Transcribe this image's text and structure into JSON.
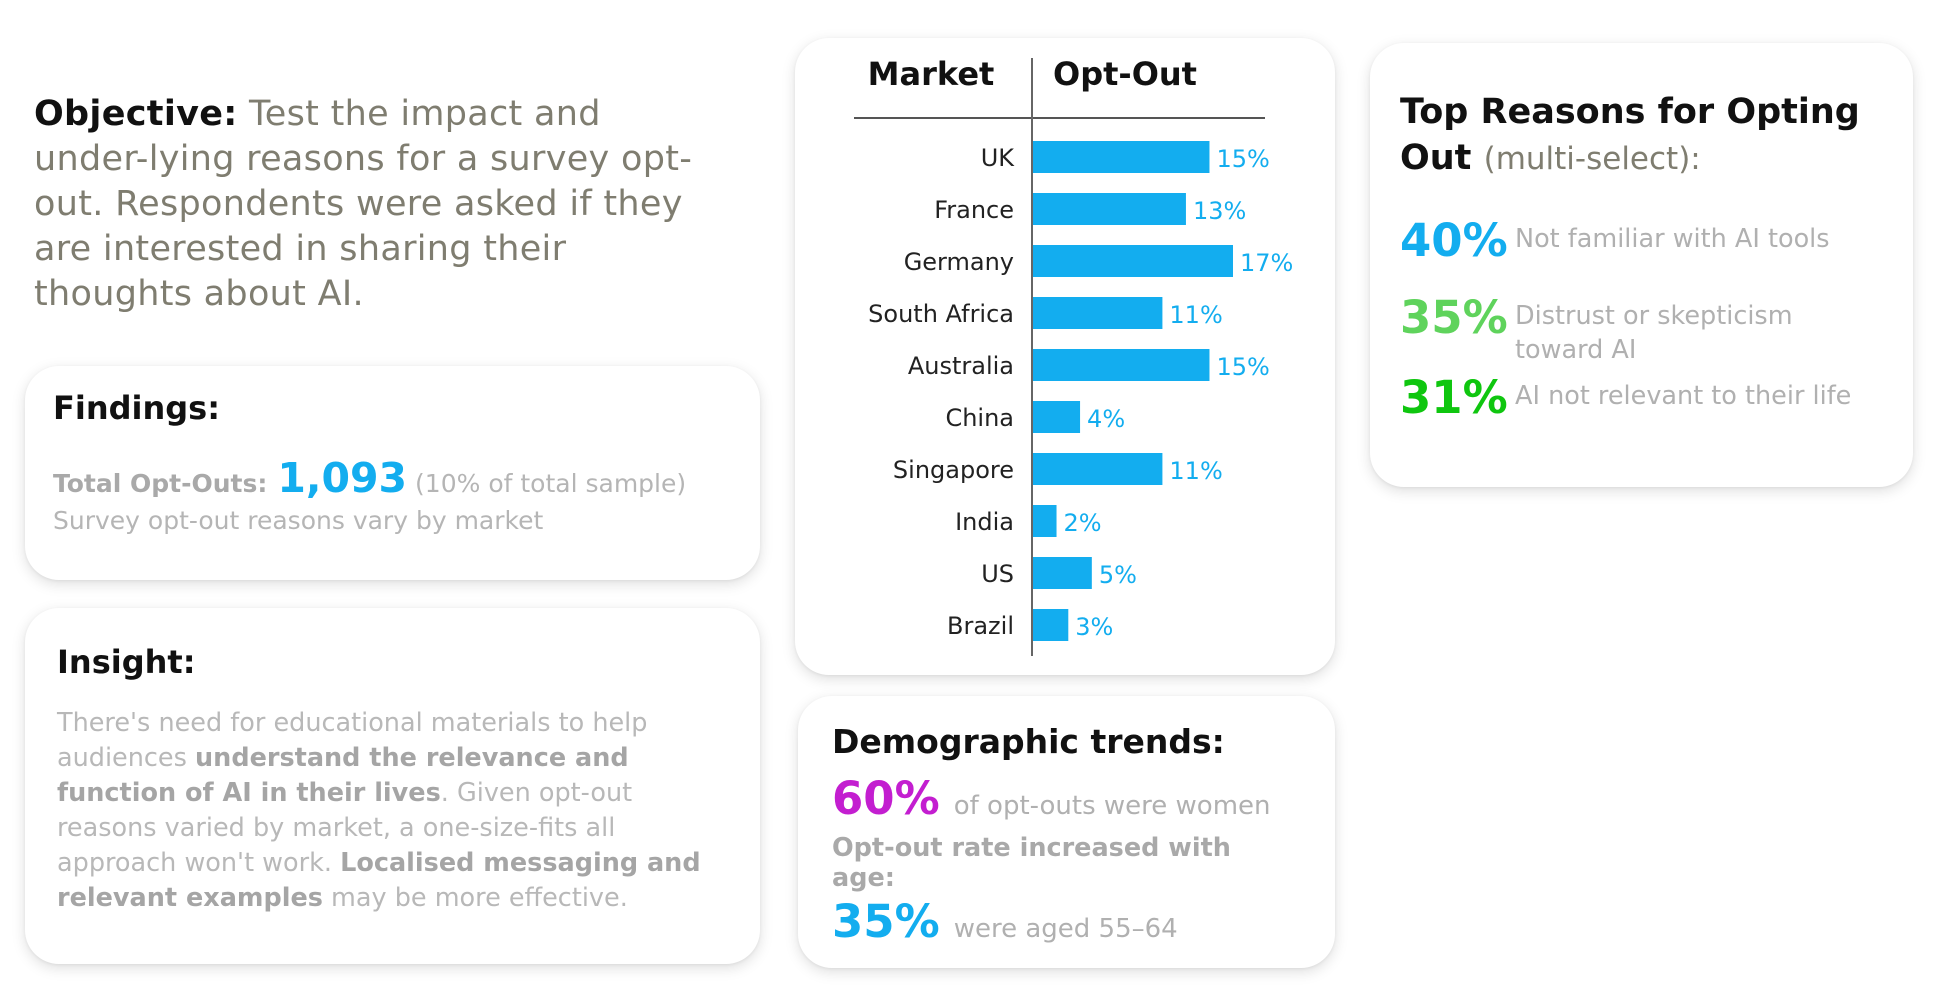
{
  "objective": {
    "label": "Objective:",
    "text": "Test the impact and under-lying reasons for a survey opt-out. Respondents were asked if they are interested in sharing their thoughts about AI."
  },
  "findings": {
    "title": "Findings:",
    "total_label": "Total Opt-Outs:",
    "total_value": "1,093",
    "total_note": "(10% of total sample)",
    "note": "Survey opt-out reasons vary by market"
  },
  "insight": {
    "title": "Insight:",
    "t1": "There's need for educational materials to help audiences ",
    "b1": "understand the relevance and function of AI in their lives",
    "t2": ". Given opt-out reasons varied by market, a one-size-fits all approach won't work. ",
    "b2": "Localised messaging and relevant examples",
    "t3": " may be more effective."
  },
  "chart_data": {
    "type": "bar",
    "orientation": "horizontal",
    "header_category": "Market",
    "header_value": "Opt-Out",
    "categories": [
      "UK",
      "France",
      "Germany",
      "South Africa",
      "Australia",
      "China",
      "Singapore",
      "India",
      "US",
      "Brazil"
    ],
    "values": [
      15,
      13,
      17,
      11,
      15,
      4,
      11,
      2,
      5,
      3
    ],
    "value_labels": [
      "15%",
      "13%",
      "17%",
      "11%",
      "15%",
      "4%",
      "11%",
      "2%",
      "5%",
      "3%"
    ],
    "unit": "%",
    "xlim": [
      0,
      17
    ],
    "bar_color": "#13adef",
    "grid": false,
    "legend": "none"
  },
  "demographics": {
    "title": "Demographic trends:",
    "women_pct": "60%",
    "women_text": "of opt-outs were women",
    "women_color": "#c31ed0",
    "age_heading": "Opt-out rate increased with age:",
    "age_pct": "35%",
    "age_text": "were aged 55–64",
    "age_color": "#13adef"
  },
  "reasons": {
    "title": "Top Reasons for Opting Out",
    "title_sub": "(multi-select):",
    "items": [
      {
        "pct": "40%",
        "text": "Not familiar with AI tools",
        "color": "#13adef"
      },
      {
        "pct": "35%",
        "text": "Distrust or skepticism toward AI",
        "color": "#5fd35c"
      },
      {
        "pct": "31%",
        "text": "AI not relevant to their life",
        "color": "#0fc60f"
      }
    ]
  }
}
